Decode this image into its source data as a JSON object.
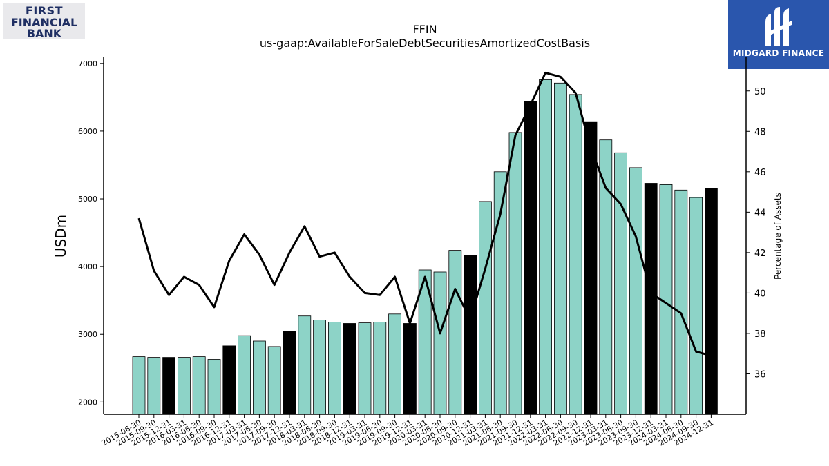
{
  "logos": {
    "left": {
      "line1": "FIRST",
      "line2": "FINANCIAL",
      "line3": "BANK"
    },
    "right": {
      "text": "MIDGARD FINANCE"
    }
  },
  "chart_data": {
    "type": "bar",
    "title": "FFIN",
    "subtitle": "us-gaap:AvailableForSaleDebtSecuritiesAmortizedCostBasis",
    "ylabel": "USDm",
    "y2label": "Percentage of Assets",
    "ylim": [
      1820,
      7100
    ],
    "y2lim": [
      34.0,
      51.7
    ],
    "yticks": [
      2000,
      3000,
      4000,
      5000,
      6000,
      7000
    ],
    "y2ticks": [
      36,
      38,
      40,
      42,
      44,
      46,
      48,
      50
    ],
    "colors": {
      "bar": "#8dd3c7",
      "bar_year_end": "#000000",
      "line": "#000000"
    },
    "categories": [
      "2015-06-30",
      "2015-09-30",
      "2015-12-31",
      "2016-03-31",
      "2016-06-30",
      "2016-09-30",
      "2016-12-31",
      "2017-03-31",
      "2017-06-30",
      "2017-09-30",
      "2017-12-31",
      "2018-03-31",
      "2018-06-30",
      "2018-09-30",
      "2018-12-31",
      "2019-03-31",
      "2019-06-30",
      "2019-09-30",
      "2019-12-31",
      "2020-03-31",
      "2020-06-30",
      "2020-09-30",
      "2020-12-31",
      "2021-03-31",
      "2021-06-30",
      "2021-09-30",
      "2021-12-31",
      "2022-03-31",
      "2022-06-30",
      "2022-09-30",
      "2022-12-31",
      "2023-03-31",
      "2023-06-30",
      "2023-09-30",
      "2023-12-31",
      "2024-03-31",
      "2024-06-30",
      "2024-09-30",
      "2024-12-31"
    ],
    "series": [
      {
        "values": [
          2670,
          2660,
          2660,
          2660,
          2670,
          2630,
          2830,
          2980,
          2900,
          2820,
          3040,
          3270,
          3210,
          3180,
          3160,
          3170,
          3180,
          3300,
          3160,
          3950,
          3920,
          4240,
          4170,
          4960,
          5400,
          5980,
          6440,
          6760,
          6710,
          6540,
          6140,
          5870,
          5680,
          5460,
          5230,
          5210,
          5130,
          5020,
          5150
        ]
      },
      {
        "axis": "right",
        "values": [
          43.7,
          41.1,
          39.9,
          40.8,
          40.4,
          39.3,
          41.6,
          42.9,
          41.9,
          40.4,
          42.0,
          43.3,
          41.8,
          42.0,
          40.8,
          40.0,
          39.9,
          40.8,
          38.5,
          40.8,
          38.0,
          40.2,
          38.7,
          41.2,
          43.9,
          47.8,
          49.3,
          50.9,
          50.7,
          49.9,
          47.2,
          45.2,
          44.4,
          42.8,
          40.0,
          39.5,
          39.0,
          37.1,
          36.9
        ]
      }
    ]
  }
}
